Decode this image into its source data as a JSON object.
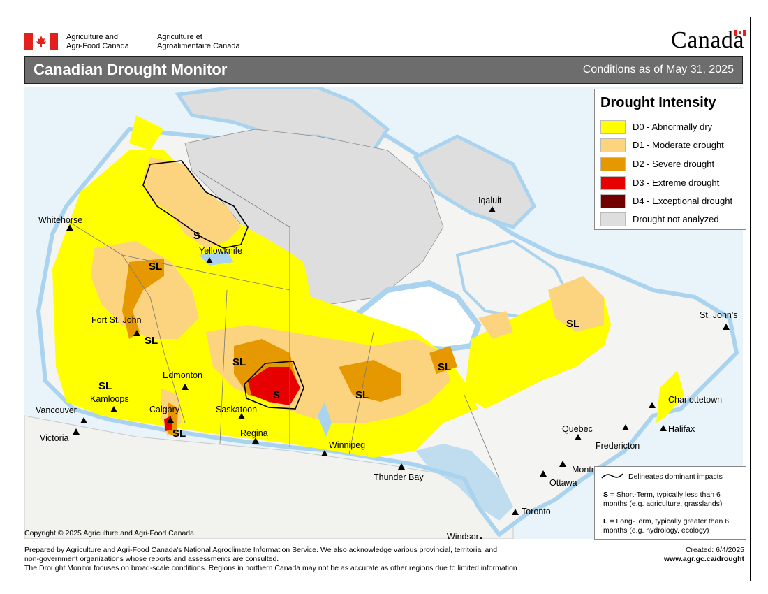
{
  "header": {
    "dept_en_line1": "Agriculture and",
    "dept_en_line2": "Agri-Food Canada",
    "dept_fr_line1": "Agriculture et",
    "dept_fr_line2": "Agroalimentaire Canada",
    "wordmark": "Canada"
  },
  "titlebar": {
    "title": "Canadian Drought Monitor",
    "conditions": "Conditions as of May 31, 2025"
  },
  "legend": {
    "title": "Drought Intensity",
    "items": [
      {
        "label": "D0 - Abnormally dry",
        "color": "#ffff00"
      },
      {
        "label": "D1 - Moderate drought",
        "color": "#fcd37f"
      },
      {
        "label": "D2 - Severe drought",
        "color": "#e69800"
      },
      {
        "label": "D3 - Extreme drought",
        "color": "#e60000"
      },
      {
        "label": "D4 - Exceptional drought",
        "color": "#730000"
      },
      {
        "label": "Drought not analyzed",
        "color": "#dedede"
      }
    ]
  },
  "impacts": {
    "line_label": "Delineates dominant impacts",
    "s_key": "S",
    "s_text": " = Short-Term, typically less than 6 months (e.g. agriculture, grasslands)",
    "l_key": "L",
    "l_text": " = Long-Term, typically greater  than 6 months (e.g. hydrology, ecology)"
  },
  "cities": [
    "Whitehorse",
    "Yellowknife",
    "Iqaluit",
    "Fort St. John",
    "Edmonton",
    "Kamloops",
    "Calgary",
    "Vancouver",
    "Victoria",
    "Saskatoon",
    "Regina",
    "Winnipeg",
    "Thunder Bay",
    "Quebec",
    "Fredericton",
    "Charlottetown",
    "Halifax",
    "St. John's",
    "Montreal",
    "Ottawa",
    "Toronto",
    "Windsor"
  ],
  "impact_labels": [
    "S",
    "SL",
    "SL",
    "SL",
    "SL",
    "SL",
    "S",
    "SL",
    "SL",
    "SL",
    "SL"
  ],
  "footer": {
    "copyright": "Copyright © 2025 Agriculture and Agri-Food Canada",
    "line1": "Prepared by Agriculture and Agri-Food Canada's National Agroclimate Information Service.  We also acknowledge various provincial, territorial and",
    "line2": "non-government organizations whose reports and assessments are consulted.",
    "line3": "The Drought Monitor focuses on broad-scale conditions.  Regions in northern Canada may not be as accurate as other regions due to limited information.",
    "created": "Created: 6/4/2025",
    "url": "www.agr.gc.ca/drought"
  },
  "colors": {
    "water": "#b9dcf0",
    "land": "#f4f4f2",
    "not_analyzed": "#dedede",
    "titlebar": "#6d6d6d",
    "flag_red": "#e3211c"
  }
}
